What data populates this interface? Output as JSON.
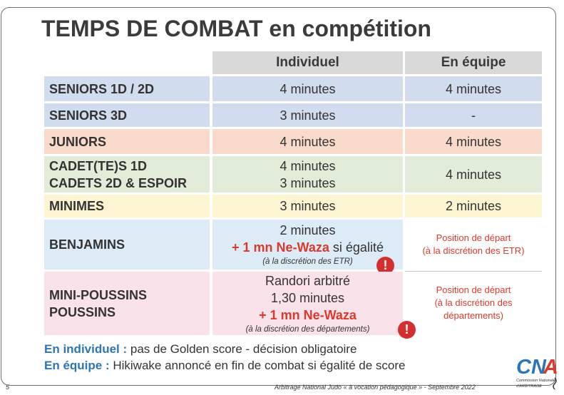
{
  "title": "TEMPS DE COMBAT en compétition",
  "headers": {
    "individual": "Individuel",
    "team": "En équipe"
  },
  "rows": [
    {
      "label": [
        "SENIORS 1D / 2D"
      ],
      "individual": "4 minutes",
      "team": "4 minutes"
    },
    {
      "label": [
        "SENIORS 3D"
      ],
      "individual": "3 minutes",
      "team": "-"
    },
    {
      "label": [
        "JUNIORS"
      ],
      "individual": "4 minutes",
      "team": "4 minutes"
    },
    {
      "label": [
        "CADET(TE)S 1D",
        "CADETS 2D & ESPOIR"
      ],
      "individual": [
        "4 minutes",
        "3 minutes"
      ],
      "team": "4 minutes"
    },
    {
      "label": [
        "MINIMES"
      ],
      "individual": "3 minutes",
      "team": "2 minutes"
    },
    {
      "label": [
        "BENJAMINS"
      ],
      "individual": {
        "line1": "2 minutes",
        "red": "+ 1 mn Ne-Waza",
        "after_red": " si égalité",
        "note": "(à la discrétion des ETR)"
      },
      "team": [
        "Position de départ",
        "(à la discrétion des ETR)"
      ]
    },
    {
      "label": [
        "MINI-POUSSINS",
        "POUSSINS"
      ],
      "individual": {
        "line1": "Randori arbitré",
        "line2": "1,30 minutes",
        "red": "+ 1 mn Ne-Waza",
        "note": "(à la discrétion des départements)"
      },
      "team": [
        "Position de départ",
        "(à la discrétion des",
        "départements)"
      ]
    }
  ],
  "notes": [
    {
      "label": "En individuel :",
      "text": " pas de Golden score - décision obligatoire"
    },
    {
      "label": "En équipe :",
      "text": " Hikiwake annoncé en fin de combat si égalité de score"
    }
  ],
  "footer": {
    "page": "5",
    "text": "Arbitrage National Judo « à vocation pédagogique » - Septembre 2022"
  },
  "warning_glyph": "!",
  "logo": {
    "text": "CNA",
    "sub1": "Commission Nationale",
    "sub2": "d'ARBITRAGE"
  },
  "colors": {
    "title": "#3b3b3b",
    "accent_red": "#d93a2b",
    "notes_blue": "#2e75b6",
    "warn": "#d32f2f"
  }
}
